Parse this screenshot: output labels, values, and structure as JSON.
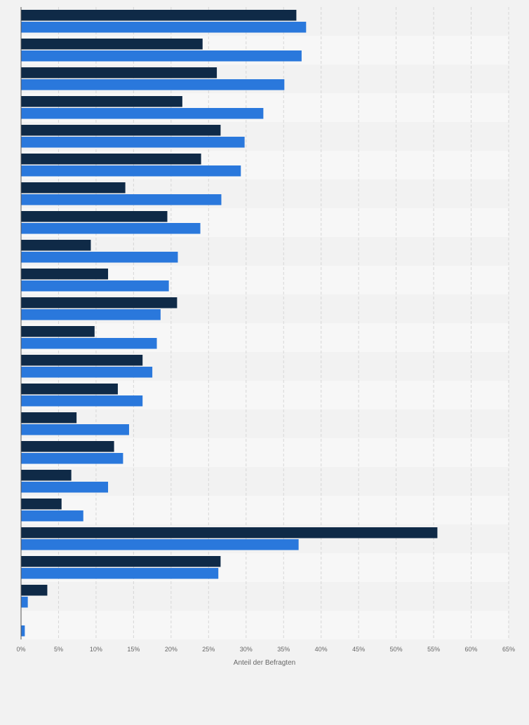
{
  "chart_data": {
    "type": "bar",
    "orientation": "horizontal",
    "xlabel": "Anteil der Befragten",
    "xlim": [
      0,
      65
    ],
    "xticks": [
      "0%",
      "5%",
      "10%",
      "15%",
      "20%",
      "25%",
      "30%",
      "35%",
      "40%",
      "45%",
      "50%",
      "55%",
      "60%",
      "65%"
    ],
    "grid": true,
    "series": [
      {
        "color": "#0f2a47",
        "values": [
          36.7,
          24.2,
          26.1,
          21.5,
          26.6,
          24.0,
          13.9,
          19.5,
          9.3,
          11.6,
          20.8,
          9.8,
          16.2,
          12.9,
          7.4,
          12.4,
          6.7,
          5.4,
          55.5,
          26.6,
          3.5,
          0
        ]
      },
      {
        "color": "#2a78dc",
        "values": [
          38.0,
          37.4,
          35.1,
          32.3,
          29.8,
          29.3,
          26.7,
          23.9,
          20.9,
          19.7,
          18.6,
          18.1,
          17.5,
          16.2,
          14.4,
          13.6,
          11.6,
          8.3,
          37.0,
          26.3,
          0.9,
          0.5
        ]
      }
    ]
  }
}
